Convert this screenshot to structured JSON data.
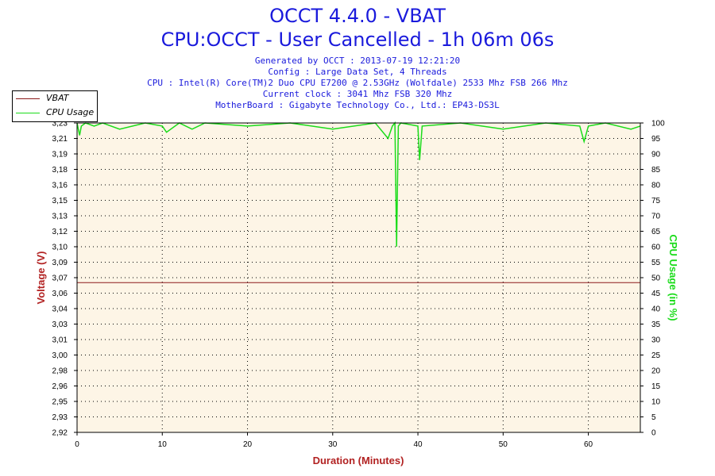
{
  "header": {
    "title_line1": "OCCT 4.4.0 - VBAT",
    "title_line2": "CPU:OCCT - User Cancelled - 1h 06m 06s",
    "info_lines": [
      "Generated by OCCT : 2013-07-19 12:21:20",
      "Config : Large Data Set, 4 Threads",
      "CPU : Intel(R) Core(TM)2 Duo CPU E7200 @ 2.53GHz (Wolfdale) 2533 Mhz FSB 266 Mhz",
      "Current clock : 3041 Mhz FSB 320 Mhz",
      "MotherBoard : Gigabyte Technology Co., Ltd.: EP43-DS3L"
    ]
  },
  "legend": {
    "vbat_label": "VBAT",
    "cpu_label": "CPU Usage"
  },
  "colors": {
    "vbat": "#8b1a1a",
    "cpu": "#1adc1a",
    "plot_bg": "#fdf5e6",
    "title": "#1a1adc",
    "axis_label_left": "#b22222",
    "axis_label_right": "#1adc1a",
    "axis_label_x": "#b22222"
  },
  "chart_data": {
    "type": "line",
    "xlabel": "Duration (Minutes)",
    "ylabel": "Voltage (V)",
    "ylabel_right": "CPU Usage (in %)",
    "xlim": [
      0,
      66.1
    ],
    "ylim": [
      2.92,
      3.23
    ],
    "ylim_right": [
      0,
      100
    ],
    "x_ticks": [
      "0",
      "10",
      "20",
      "30",
      "40",
      "50",
      "60"
    ],
    "y_ticks": [
      "2,92",
      "2,93",
      "2,95",
      "2,96",
      "2,98",
      "3,00",
      "3,01",
      "3,03",
      "3,04",
      "3,06",
      "3,07",
      "3,09",
      "3,10",
      "3,12",
      "3,13",
      "3,15",
      "3,16",
      "3,18",
      "3,19",
      "3,21",
      "3,23"
    ],
    "y_ticks_right": [
      "0",
      "5",
      "10",
      "15",
      "20",
      "25",
      "30",
      "35",
      "40",
      "45",
      "50",
      "55",
      "60",
      "65",
      "70",
      "75",
      "80",
      "85",
      "90",
      "95",
      "100"
    ],
    "grid": true,
    "legend_position": "top-left",
    "series": [
      {
        "name": "VBAT",
        "axis": "left",
        "x": [
          0,
          66.1
        ],
        "values": [
          3.07,
          3.07
        ]
      },
      {
        "name": "CPU Usage",
        "axis": "right",
        "x": [
          0,
          0.3,
          0.5,
          1,
          2,
          3,
          5,
          8,
          10,
          10.5,
          12,
          13.5,
          15,
          20,
          25,
          30,
          35,
          36.5,
          37,
          37.3,
          37.5,
          37.7,
          38,
          40,
          40.2,
          40.5,
          45,
          50,
          55,
          59,
          59.5,
          60,
          62,
          65,
          66.1
        ],
        "values": [
          100,
          96,
          99,
          100,
          99,
          100,
          98,
          100,
          99,
          97,
          100,
          98,
          100,
          99,
          100,
          98,
          100,
          95,
          99,
          100,
          60,
          99,
          100,
          99,
          88,
          99,
          100,
          98,
          100,
          99,
          94,
          99,
          100,
          98,
          99
        ]
      }
    ]
  }
}
